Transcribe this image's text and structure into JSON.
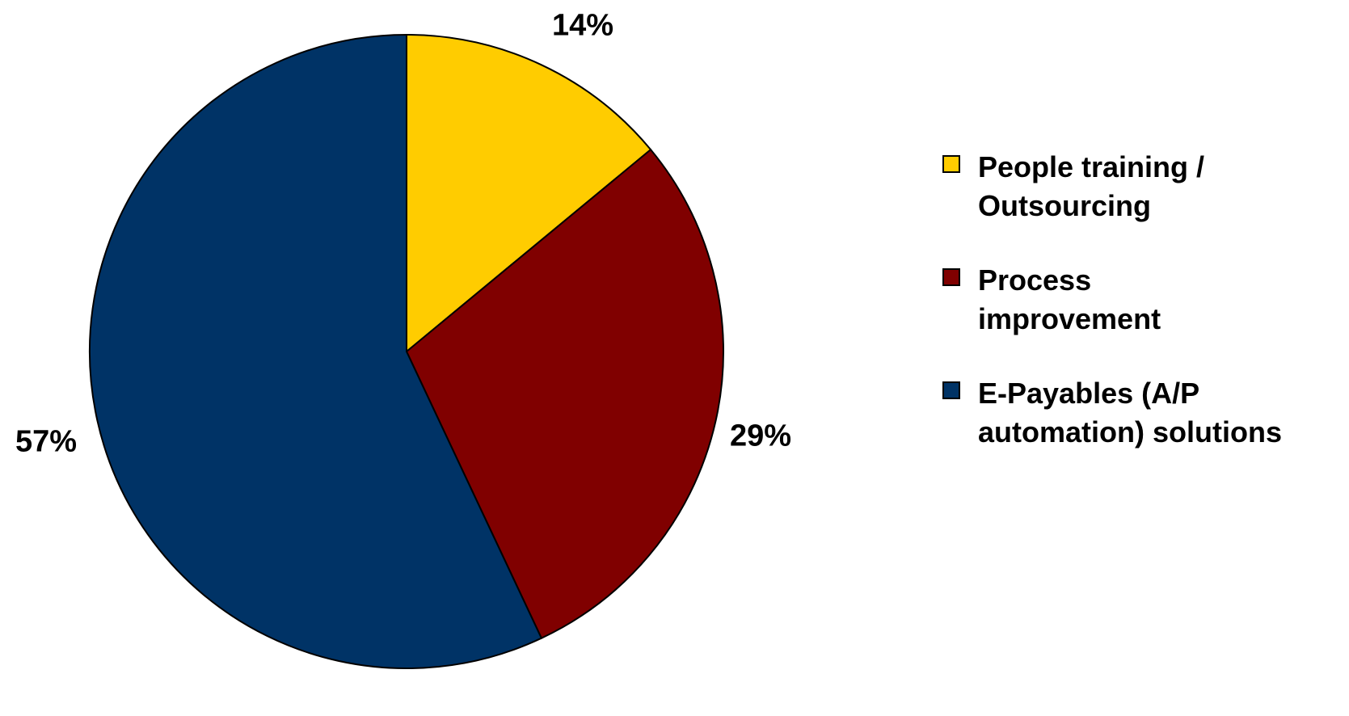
{
  "chart_data": {
    "type": "pie",
    "title": "",
    "legend_position": "right",
    "slices": [
      {
        "label": "People training / Outsourcing",
        "legend_lines": [
          "People training /",
          "Outsourcing"
        ],
        "value": 14,
        "data_label": "14%",
        "color": "#FFCC00"
      },
      {
        "label": "Process improvement",
        "legend_lines": [
          "Process",
          "improvement"
        ],
        "value": 29,
        "data_label": "29%",
        "color": "#800000"
      },
      {
        "label": "E-Payables (A/P automation) solutions",
        "legend_lines": [
          "E-Payables (A/P",
          "automation) solutions"
        ],
        "value": 57,
        "data_label": "57%",
        "color": "#003366"
      }
    ]
  }
}
